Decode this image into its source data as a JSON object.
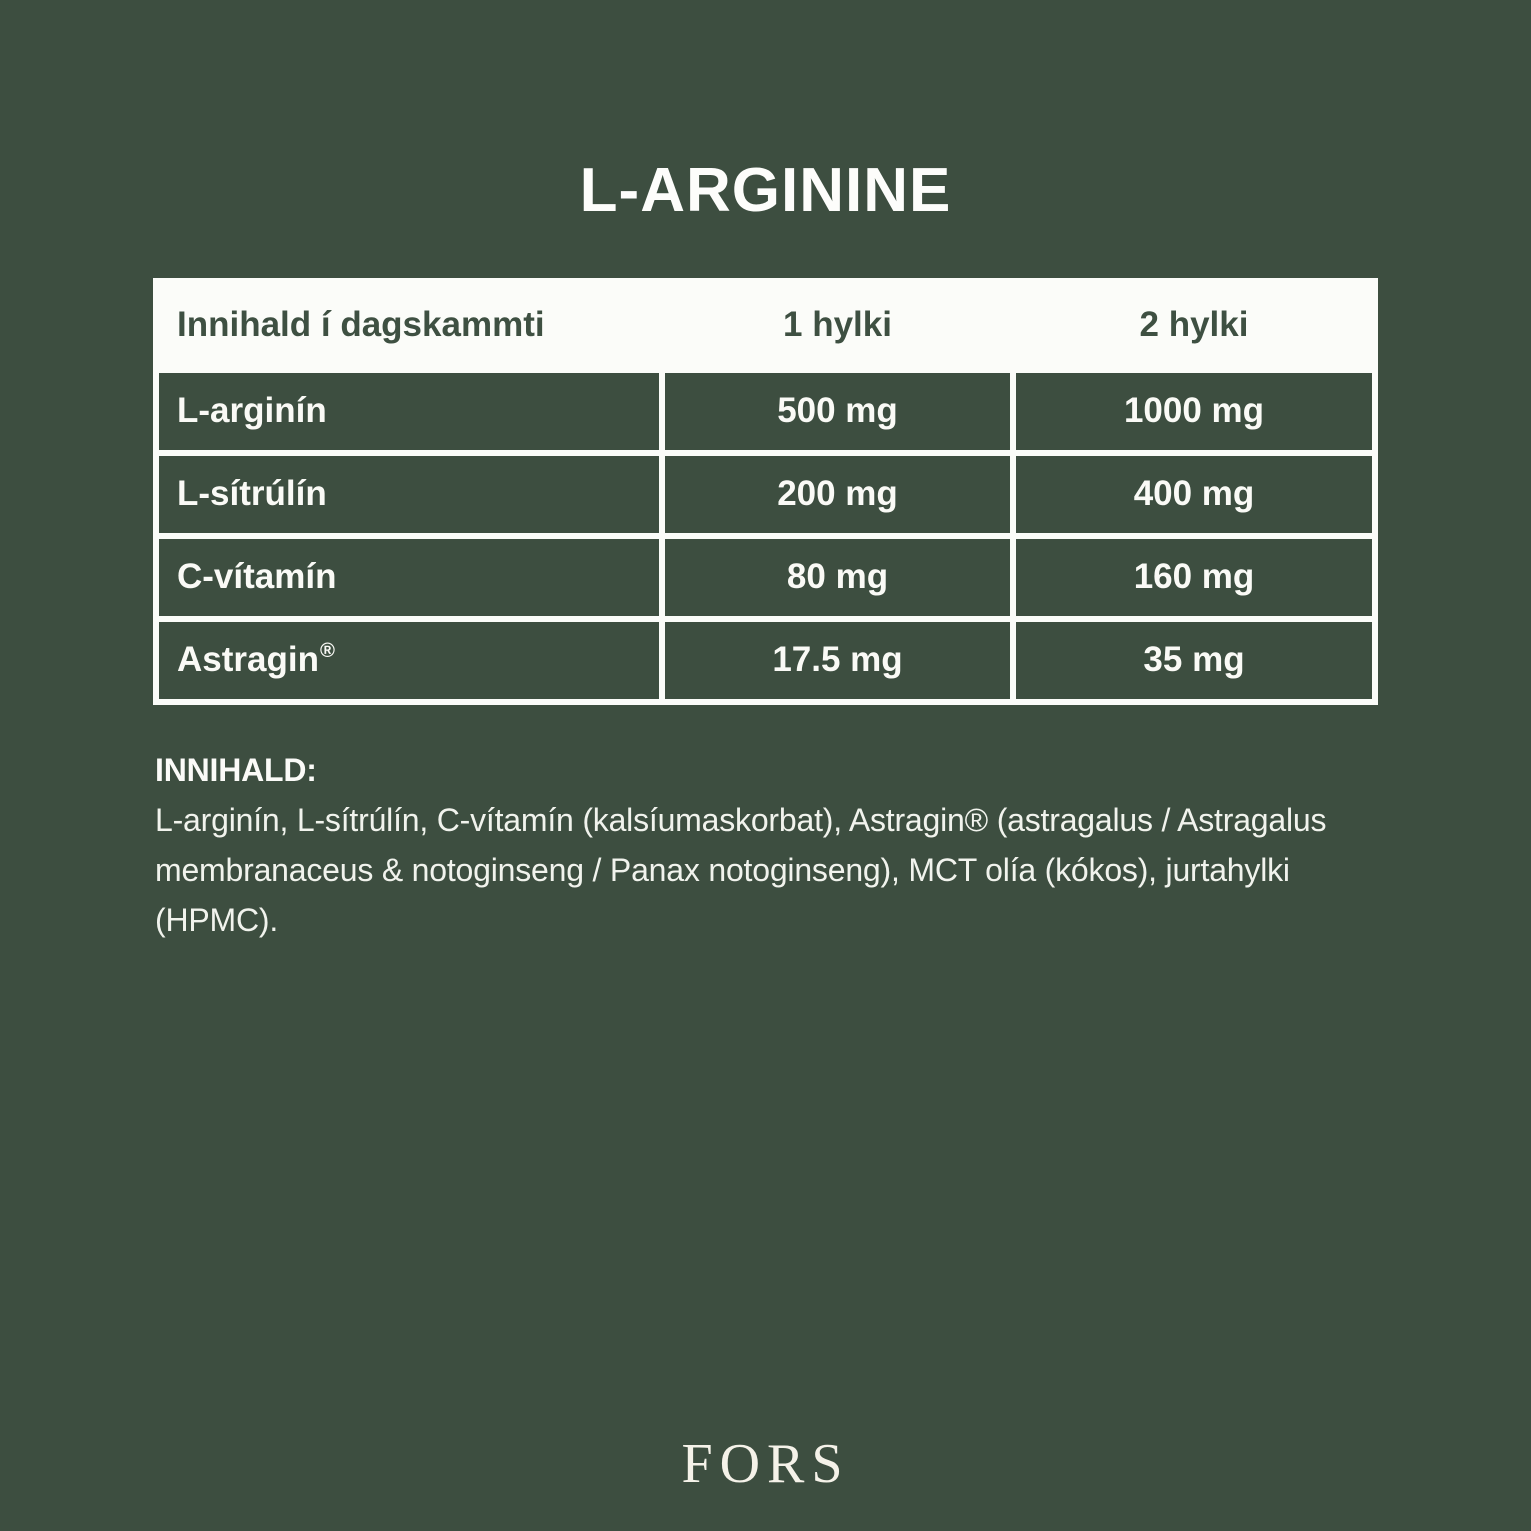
{
  "page": {
    "title": "L-ARGININE",
    "colors": {
      "background": "#3D4E40",
      "table_border": "#FBFCF9",
      "header_text": "#3E5042",
      "body_text": "#F1F3ED",
      "title_text": "#FDFDFB"
    }
  },
  "table": {
    "headers": [
      "Innihald í dagskammti",
      "1 hylki",
      "2 hylki"
    ],
    "rows": [
      {
        "label": "L-arginín",
        "per_1": "500 mg",
        "per_2": "1000 mg"
      },
      {
        "label": "L-sítrúlín",
        "per_1": "200 mg",
        "per_2": "400 mg"
      },
      {
        "label": "C-vítamín",
        "per_1": "80 mg",
        "per_2": "160 mg"
      },
      {
        "label": "Astragin",
        "label_sup": "®",
        "per_1": "17.5 mg",
        "per_2": "35 mg"
      }
    ]
  },
  "ingredients": {
    "heading": "INNIHALD:",
    "text": "L-arginín, L-sítrúlín, C-vítamín (kalsíumaskorbat), Astragin® (astragalus / Astragalus membranaceus & notoginseng / Panax notoginseng), MCT olía (kókos), jurtahylki (HPMC)."
  },
  "footer": {
    "brand": "FORS"
  }
}
